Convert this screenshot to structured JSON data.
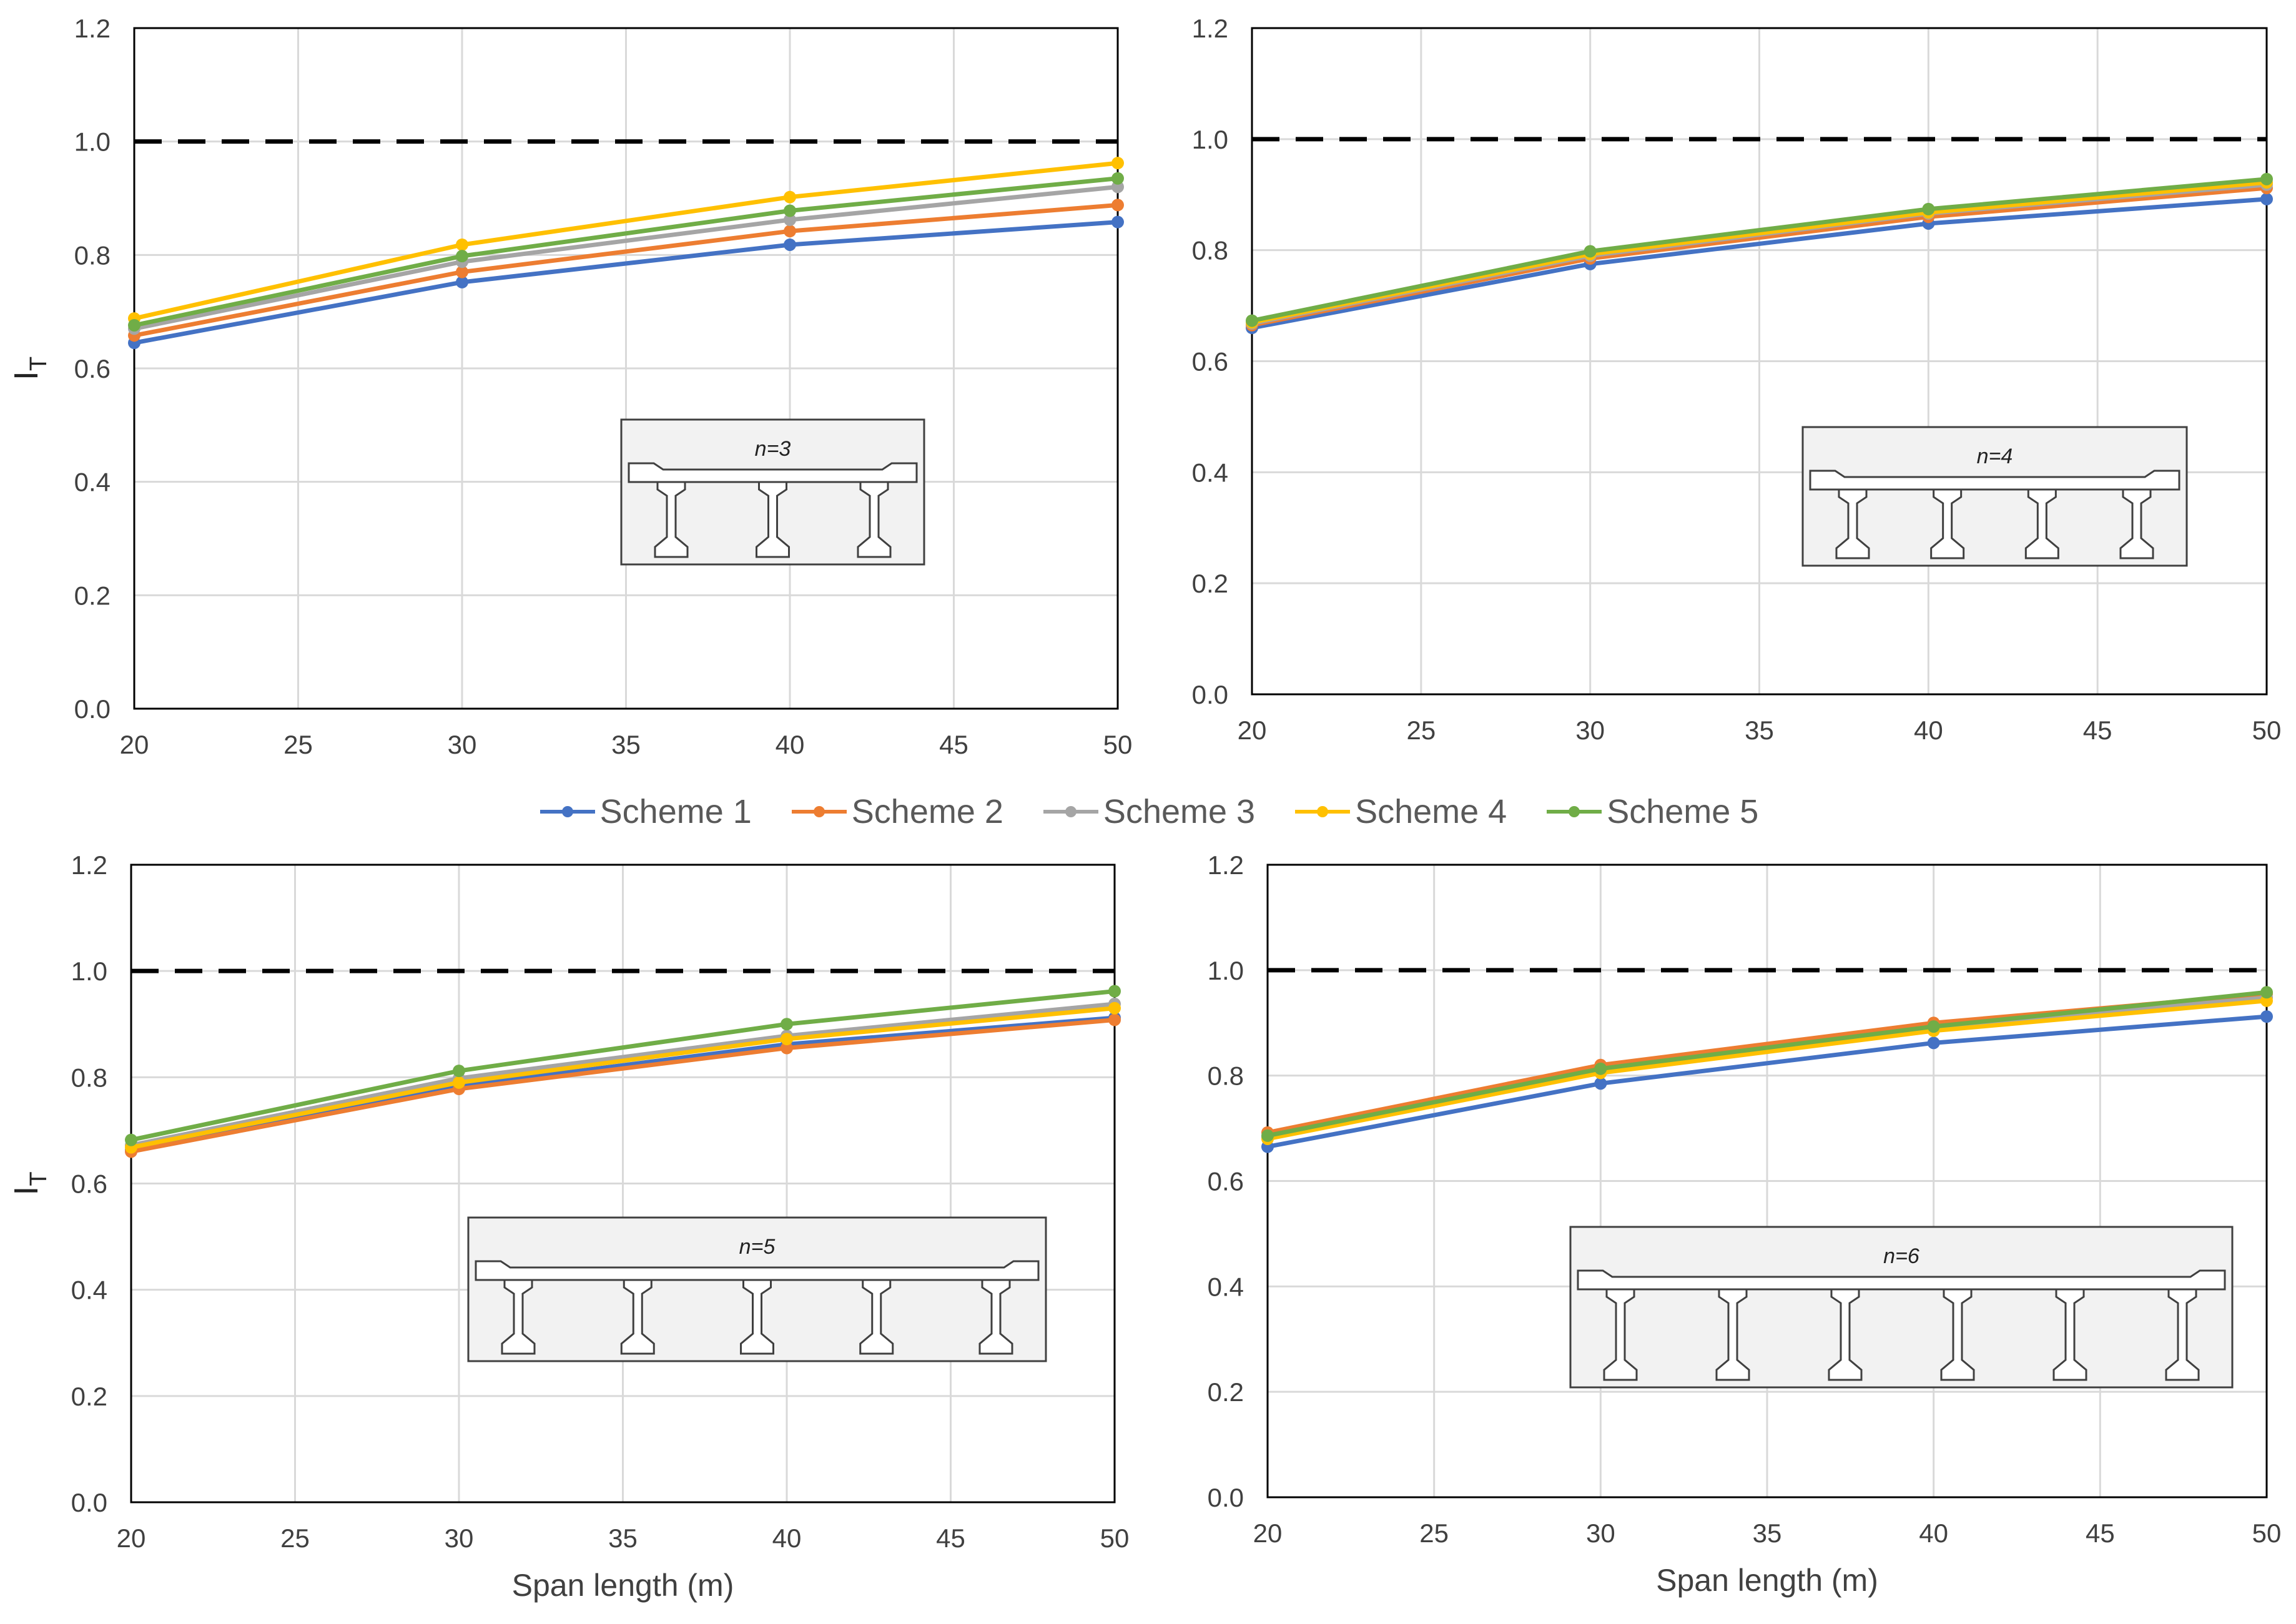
{
  "colors": {
    "Scheme 1": "#4472c4",
    "Scheme 2": "#ed7d31",
    "Scheme 3": "#a5a5a5",
    "Scheme 4": "#ffc000",
    "Scheme 5": "#70ad47",
    "reference": "#000000",
    "grid": "#d9d9d9",
    "inset_fill": "#f2f2f2"
  },
  "legend": {
    "items": [
      "Scheme 1",
      "Scheme 2",
      "Scheme 3",
      "Scheme 4",
      "Scheme 5"
    ]
  },
  "chart_data": [
    {
      "type": "line",
      "panel": "top-left",
      "inset_label": "n=3",
      "girders": 3,
      "ylabel": "I",
      "ylabel_sub": "T",
      "xlabel": "",
      "x": [
        20,
        30,
        40,
        50
      ],
      "xticks": [
        "20",
        "25",
        "30",
        "35",
        "40",
        "45",
        "50"
      ],
      "yticks": [
        "0.0",
        "0.2",
        "0.4",
        "0.6",
        "0.8",
        "1.0",
        "1.2"
      ],
      "xlim": [
        20,
        50
      ],
      "ylim": [
        0,
        1.2
      ],
      "reference_line": 1.0,
      "series": [
        {
          "name": "Scheme 1",
          "values": [
            0.645,
            0.752,
            0.818,
            0.858
          ]
        },
        {
          "name": "Scheme 2",
          "values": [
            0.658,
            0.77,
            0.842,
            0.888
          ]
        },
        {
          "name": "Scheme 3",
          "values": [
            0.67,
            0.788,
            0.862,
            0.92
          ]
        },
        {
          "name": "Scheme 4",
          "values": [
            0.688,
            0.818,
            0.902,
            0.962
          ]
        },
        {
          "name": "Scheme 5",
          "values": [
            0.676,
            0.798,
            0.878,
            0.935
          ]
        }
      ]
    },
    {
      "type": "line",
      "panel": "top-right",
      "inset_label": "n=4",
      "girders": 4,
      "ylabel": "",
      "ylabel_sub": "",
      "xlabel": "",
      "x": [
        20,
        30,
        40,
        50
      ],
      "xticks": [
        "20",
        "25",
        "30",
        "35",
        "40",
        "45",
        "50"
      ],
      "yticks": [
        "0.0",
        "0.2",
        "0.4",
        "0.6",
        "0.8",
        "1.0",
        "1.2"
      ],
      "xlim": [
        20,
        50
      ],
      "ylim": [
        0,
        1.2
      ],
      "reference_line": 1.0,
      "series": [
        {
          "name": "Scheme 1",
          "values": [
            0.66,
            0.775,
            0.848,
            0.892
          ]
        },
        {
          "name": "Scheme 2",
          "values": [
            0.665,
            0.785,
            0.86,
            0.912
          ]
        },
        {
          "name": "Scheme 3",
          "values": [
            0.668,
            0.79,
            0.866,
            0.918
          ]
        },
        {
          "name": "Scheme 4",
          "values": [
            0.67,
            0.793,
            0.868,
            0.922
          ]
        },
        {
          "name": "Scheme 5",
          "values": [
            0.673,
            0.798,
            0.874,
            0.928
          ]
        }
      ]
    },
    {
      "type": "line",
      "panel": "bottom-left",
      "inset_label": "n=5",
      "girders": 5,
      "ylabel": "I",
      "ylabel_sub": "T",
      "xlabel": "Span length (m)",
      "x": [
        20,
        30,
        40,
        50
      ],
      "xticks": [
        "20",
        "25",
        "30",
        "35",
        "40",
        "45",
        "50"
      ],
      "yticks": [
        "0.0",
        "0.2",
        "0.4",
        "0.6",
        "0.8",
        "1.0",
        "1.2"
      ],
      "xlim": [
        20,
        50
      ],
      "ylim": [
        0,
        1.2
      ],
      "reference_line": 1.0,
      "series": [
        {
          "name": "Scheme 1",
          "values": [
            0.663,
            0.783,
            0.862,
            0.912
          ]
        },
        {
          "name": "Scheme 2",
          "values": [
            0.66,
            0.778,
            0.855,
            0.908
          ]
        },
        {
          "name": "Scheme 3",
          "values": [
            0.672,
            0.798,
            0.878,
            0.938
          ]
        },
        {
          "name": "Scheme 4",
          "values": [
            0.668,
            0.79,
            0.872,
            0.93
          ]
        },
        {
          "name": "Scheme 5",
          "values": [
            0.682,
            0.812,
            0.9,
            0.962
          ]
        }
      ]
    },
    {
      "type": "line",
      "panel": "bottom-right",
      "inset_label": "n=6",
      "girders": 6,
      "ylabel": "",
      "ylabel_sub": "",
      "xlabel": "Span length (m)",
      "x": [
        20,
        30,
        40,
        50
      ],
      "xticks": [
        "20",
        "25",
        "30",
        "35",
        "40",
        "45",
        "50"
      ],
      "yticks": [
        "0.0",
        "0.2",
        "0.4",
        "0.6",
        "0.8",
        "1.0",
        "1.2"
      ],
      "xlim": [
        20,
        50
      ],
      "ylim": [
        0,
        1.2
      ],
      "reference_line": 1.0,
      "series": [
        {
          "name": "Scheme 1",
          "values": [
            0.665,
            0.785,
            0.862,
            0.912
          ]
        },
        {
          "name": "Scheme 2",
          "values": [
            0.692,
            0.82,
            0.9,
            0.955
          ]
        },
        {
          "name": "Scheme 3",
          "values": [
            0.683,
            0.81,
            0.89,
            0.948
          ]
        },
        {
          "name": "Scheme 4",
          "values": [
            0.68,
            0.805,
            0.885,
            0.942
          ]
        },
        {
          "name": "Scheme 5",
          "values": [
            0.686,
            0.813,
            0.893,
            0.958
          ]
        }
      ]
    }
  ]
}
